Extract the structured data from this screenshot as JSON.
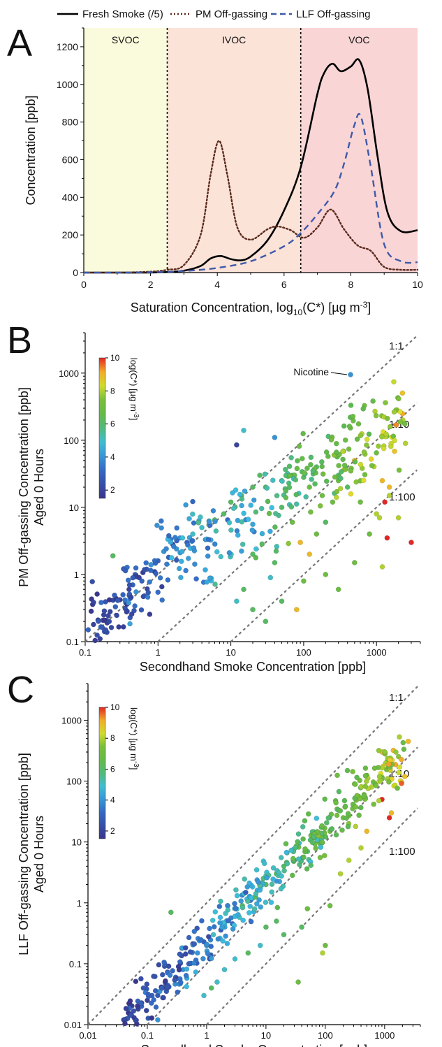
{
  "chart_data": [
    {
      "panel": "A",
      "type": "line",
      "legend": {
        "placement": "top",
        "entries": [
          "Fresh Smoke (/5)",
          "PM Off-gassing",
          "LLF Off-gassing"
        ]
      },
      "xlabel_parts": [
        "Saturation Concentration, log",
        "10",
        "(C*) [µg m",
        "-3",
        "]"
      ],
      "ylabel": "Concentration [ppb]",
      "xlim": [
        0,
        10
      ],
      "ylim": [
        0,
        1300
      ],
      "xticks": [
        0,
        2,
        4,
        6,
        8,
        10
      ],
      "yticks": [
        0,
        200,
        400,
        600,
        800,
        1000,
        1200
      ],
      "regions": [
        {
          "label": "SVOC",
          "from": 0,
          "to": 2.5,
          "color": "#fafadc"
        },
        {
          "label": "IVOC",
          "from": 2.5,
          "to": 6.5,
          "color": "#fbe3d8"
        },
        {
          "label": "VOC",
          "from": 6.5,
          "to": 10,
          "color": "#f9d5d6"
        }
      ],
      "series": [
        {
          "name": "Fresh Smoke (/5)",
          "color": "#000000",
          "dash": "solid",
          "x": [
            0,
            1,
            2,
            2.5,
            3,
            3.5,
            3.8,
            4.1,
            4.4,
            4.7,
            5,
            5.5,
            6,
            6.5,
            7,
            7.2,
            7.45,
            7.7,
            8,
            8.25,
            8.5,
            8.8,
            9.1,
            9.5,
            10
          ],
          "y": [
            0,
            0,
            0,
            3,
            10,
            35,
            75,
            88,
            72,
            65,
            85,
            170,
            330,
            560,
            950,
            1060,
            1110,
            1070,
            1095,
            1130,
            980,
            620,
            320,
            220,
            225
          ]
        },
        {
          "name": "PM Off-gassing",
          "color": "#5a2a1c",
          "dash": "dotted",
          "x": [
            0,
            1,
            2,
            2.5,
            3,
            3.5,
            3.8,
            4.05,
            4.3,
            4.6,
            5,
            5.5,
            5.8,
            6.2,
            6.6,
            7,
            7.4,
            7.8,
            8.2,
            8.6,
            9,
            9.5,
            10
          ],
          "y": [
            0,
            0,
            5,
            15,
            40,
            200,
            520,
            700,
            520,
            240,
            175,
            230,
            245,
            225,
            185,
            240,
            335,
            230,
            145,
            115,
            30,
            15,
            15
          ]
        },
        {
          "name": "LLF Off-gassing",
          "color": "#3f5aa8",
          "dash": "dashed",
          "x": [
            0,
            1,
            2,
            3,
            4,
            5,
            6,
            6.5,
            7,
            7.5,
            7.8,
            8.1,
            8.3,
            8.6,
            9,
            9.5,
            10
          ],
          "y": [
            0,
            0,
            2,
            8,
            25,
            60,
            140,
            210,
            310,
            430,
            580,
            780,
            830,
            560,
            150,
            60,
            55
          ]
        }
      ],
      "grid": false
    },
    {
      "panel": "B",
      "type": "scatter",
      "xlabel": "Secondhand Smoke Concentration [ppb]",
      "ylabel_lines": [
        "PM Off-gassing Concentration [ppb]",
        "Aged 0 Hours"
      ],
      "xscale": "log",
      "yscale": "log",
      "xlim": [
        0.1,
        4000
      ],
      "ylim": [
        0.1,
        4000
      ],
      "xtick_labels": [
        "0.1",
        "1",
        "10",
        "100",
        "1000"
      ],
      "ytick_labels": [
        "0.1",
        "1",
        "10",
        "100",
        "1000"
      ],
      "ratio_lines": [
        "1:1",
        "1:10",
        "1:100"
      ],
      "annotation": {
        "text": "Nicotine",
        "x": 440,
        "y": 950
      },
      "colorbar": {
        "label": "log(C*) [µg m",
        "label_sup": "-3",
        "label_end": "]",
        "ticks": [
          2,
          4,
          6,
          8,
          10
        ],
        "range": [
          1.5,
          10
        ]
      },
      "grid": false,
      "n_points": 420,
      "points": [
        [
          0.11,
          0.15,
          3
        ],
        [
          0.13,
          0.18,
          2
        ],
        [
          0.15,
          0.21,
          2
        ],
        [
          0.16,
          0.11,
          2
        ],
        [
          0.18,
          0.25,
          2
        ],
        [
          0.2,
          0.19,
          2
        ],
        [
          0.22,
          0.28,
          2
        ],
        [
          0.24,
          1.9,
          6
        ],
        [
          0.26,
          0.33,
          3
        ],
        [
          0.3,
          0.42,
          2
        ],
        [
          0.33,
          0.5,
          3
        ],
        [
          0.36,
          0.38,
          3
        ],
        [
          0.4,
          0.6,
          2
        ],
        [
          0.45,
          0.7,
          3
        ],
        [
          0.5,
          0.55,
          4
        ],
        [
          0.55,
          0.9,
          2
        ],
        [
          0.6,
          0.8,
          3
        ],
        [
          0.7,
          1.2,
          3
        ],
        [
          0.8,
          1.4,
          4
        ],
        [
          0.9,
          1.1,
          2
        ],
        [
          1.0,
          1.6,
          3
        ],
        [
          1.2,
          2.2,
          4
        ],
        [
          1.4,
          1.8,
          3
        ],
        [
          1.6,
          2.8,
          2
        ],
        [
          1.8,
          2.4,
          4
        ],
        [
          2.0,
          3.5,
          4
        ],
        [
          2.5,
          3.0,
          3
        ],
        [
          3.0,
          4.0,
          5
        ],
        [
          4.0,
          5.0,
          5
        ],
        [
          5.0,
          5.5,
          6
        ],
        [
          6.0,
          6.5,
          6
        ],
        [
          12,
          85,
          2
        ],
        [
          15,
          140,
          5
        ],
        [
          40,
          110,
          4
        ],
        [
          8,
          8,
          6
        ],
        [
          10,
          12,
          6
        ],
        [
          14,
          15,
          6
        ],
        [
          20,
          20,
          6
        ],
        [
          25,
          30,
          6
        ],
        [
          30,
          20,
          6
        ],
        [
          50,
          25,
          6
        ],
        [
          70,
          30,
          6
        ],
        [
          100,
          28,
          6
        ],
        [
          120,
          20,
          7
        ],
        [
          150,
          40,
          6
        ],
        [
          180,
          15,
          7
        ],
        [
          250,
          12,
          7
        ],
        [
          300,
          30,
          6
        ],
        [
          400,
          20,
          6
        ],
        [
          440,
          950,
          4
        ],
        [
          2300,
          200,
          8
        ],
        [
          2500,
          90,
          8
        ],
        [
          1200,
          25,
          9
        ],
        [
          1500,
          20,
          9
        ],
        [
          1300,
          12,
          10
        ],
        [
          1100,
          7,
          8
        ],
        [
          1400,
          3.5,
          10
        ],
        [
          1200,
          1.3,
          8
        ],
        [
          600,
          12,
          7
        ],
        [
          500,
          50,
          9
        ],
        [
          300,
          25,
          7
        ],
        [
          200,
          6,
          6
        ],
        [
          150,
          4,
          7
        ],
        [
          120,
          2,
          9
        ],
        [
          90,
          3,
          9
        ],
        [
          70,
          6,
          7
        ],
        [
          50,
          10,
          6
        ],
        [
          40,
          1.5,
          6
        ],
        [
          35,
          0.9,
          5
        ],
        [
          20,
          2,
          6
        ],
        [
          15,
          0.6,
          6
        ],
        [
          12,
          0.4,
          5
        ],
        [
          20,
          0.3,
          6
        ],
        [
          30,
          0.2,
          6
        ],
        [
          50,
          0.4,
          6
        ],
        [
          80,
          0.3,
          9
        ],
        [
          100,
          0.8,
          7
        ],
        [
          200,
          1,
          7
        ],
        [
          300,
          0.6,
          7
        ],
        [
          500,
          1.5,
          7
        ],
        [
          800,
          4,
          7
        ],
        [
          1000,
          8,
          8
        ],
        [
          1500,
          15,
          8
        ],
        [
          2000,
          7,
          8
        ],
        [
          3000,
          3,
          10
        ]
      ]
    },
    {
      "panel": "C",
      "type": "scatter",
      "xlabel": "Secondhand Smoke Concentration [ppb]",
      "ylabel_lines": [
        "LLF Off-gassing Concentration [ppb]",
        "Aged 0 Hours"
      ],
      "xscale": "log",
      "yscale": "log",
      "xlim": [
        0.01,
        4000
      ],
      "ylim": [
        0.01,
        4000
      ],
      "xtick_labels": [
        "0.01",
        "0.1",
        "1",
        "10",
        "100",
        "1000"
      ],
      "ytick_labels": [
        "0.01",
        "0.1",
        "1",
        "10",
        "100",
        "1000"
      ],
      "ratio_lines": [
        "1:1",
        "1:10",
        "1:100"
      ],
      "colorbar": {
        "label": "log(C*) [µg m",
        "label_sup": "-3",
        "label_end": "]",
        "ticks": [
          2,
          4,
          6,
          8,
          10
        ],
        "range": [
          1.5,
          10
        ]
      },
      "grid": false,
      "n_points": 440,
      "points": [
        [
          0.04,
          0.012,
          2
        ],
        [
          0.05,
          0.015,
          2
        ],
        [
          0.06,
          0.013,
          2
        ],
        [
          0.07,
          0.018,
          2
        ],
        [
          0.08,
          0.02,
          3
        ],
        [
          0.1,
          0.025,
          2
        ],
        [
          0.12,
          0.03,
          3
        ],
        [
          0.15,
          0.012,
          4
        ],
        [
          0.18,
          0.04,
          2
        ],
        [
          0.2,
          0.05,
          3
        ],
        [
          0.25,
          0.7,
          6
        ],
        [
          0.3,
          0.06,
          3
        ],
        [
          0.4,
          0.08,
          4
        ],
        [
          0.5,
          0.1,
          3
        ],
        [
          0.7,
          0.15,
          4
        ],
        [
          1.0,
          0.2,
          4
        ],
        [
          1.3,
          0.3,
          5
        ],
        [
          2.0,
          0.45,
          5
        ],
        [
          3.0,
          0.6,
          5
        ],
        [
          4.0,
          0.9,
          6
        ],
        [
          6.0,
          1.2,
          6
        ],
        [
          10,
          2.0,
          6
        ],
        [
          15,
          3.0,
          6
        ],
        [
          20,
          4.0,
          6
        ],
        [
          30,
          5.0,
          6
        ],
        [
          50,
          7.0,
          6
        ],
        [
          80,
          10,
          7
        ],
        [
          120,
          15,
          7
        ],
        [
          200,
          25,
          7
        ],
        [
          300,
          40,
          7
        ],
        [
          450,
          60,
          7
        ],
        [
          600,
          80,
          8
        ],
        [
          900,
          300,
          9
        ],
        [
          1400,
          320,
          9
        ],
        [
          2500,
          450,
          9
        ],
        [
          1300,
          30,
          9
        ],
        [
          1200,
          25,
          10
        ],
        [
          900,
          50,
          10
        ],
        [
          500,
          15,
          9
        ],
        [
          400,
          8,
          8
        ],
        [
          250,
          5,
          8
        ],
        [
          180,
          3,
          8
        ],
        [
          120,
          0.9,
          7
        ],
        [
          100,
          0.2,
          7
        ],
        [
          90,
          0.15,
          8
        ],
        [
          50,
          0.8,
          7
        ],
        [
          40,
          0.4,
          6
        ],
        [
          35,
          0.05,
          7
        ],
        [
          20,
          0.3,
          6
        ],
        [
          15,
          0.5,
          6
        ],
        [
          10,
          0.4,
          6
        ],
        [
          8,
          0.2,
          5
        ],
        [
          5,
          0.15,
          6
        ],
        [
          3,
          0.12,
          5
        ],
        [
          2,
          0.08,
          5
        ],
        [
          1.5,
          0.05,
          5
        ],
        [
          1.2,
          0.04,
          6
        ],
        [
          0.9,
          0.03,
          5
        ]
      ]
    }
  ]
}
